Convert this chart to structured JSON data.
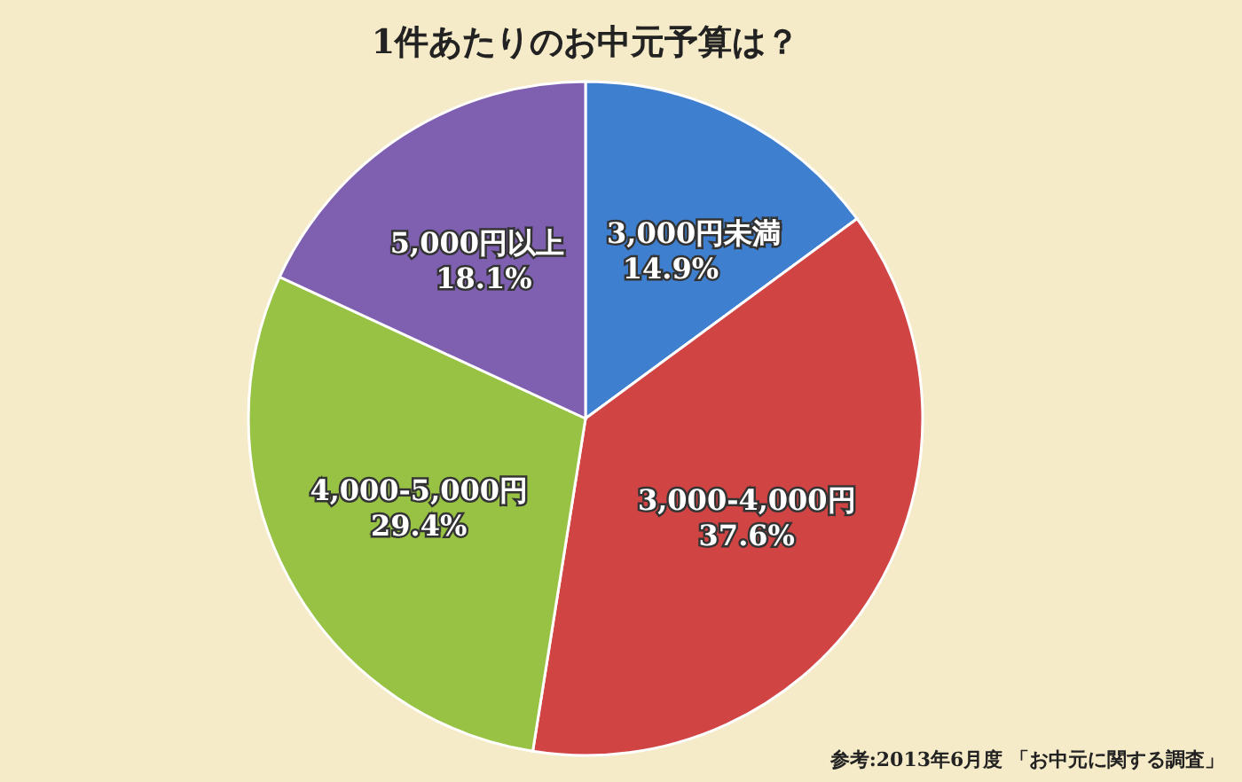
{
  "chart_data": {
    "type": "pie",
    "title": "1件あたりのお中元予算は？",
    "categories": [
      "3,000円未満",
      "3,000-4,000円",
      "4,000-5,000円",
      "5,000円以上"
    ],
    "values": [
      14.9,
      37.6,
      29.4,
      18.1
    ],
    "colors": [
      "#3f7fd0",
      "#d04444",
      "#98c244",
      "#7f5fb0"
    ],
    "value_labels": [
      "14.9%",
      "37.6%",
      "29.4%",
      "18.1%"
    ],
    "annotations": [
      "参考:2013年6月度 「お中元に関する調査」"
    ]
  }
}
